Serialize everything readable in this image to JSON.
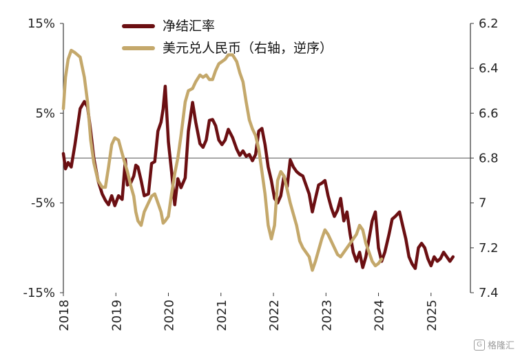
{
  "chart_data": {
    "type": "line",
    "title": "",
    "left_axis": {
      "min": -15,
      "max": 15,
      "ticks": [
        15,
        5,
        -5,
        -15
      ],
      "tick_labels": [
        "15%",
        "5%",
        "-5%",
        "-15%"
      ]
    },
    "right_axis": {
      "min": 6.2,
      "max": 7.4,
      "inverted": true,
      "ticks": [
        6.2,
        6.4,
        6.6,
        6.8,
        7.0,
        7.2,
        7.4
      ],
      "tick_labels": [
        "6.2",
        "6.4",
        "6.6",
        "6.8",
        "7",
        "7.2",
        "7.4"
      ]
    },
    "x_axis": {
      "start": 2018.0,
      "end": 2025.75,
      "ticks": [
        2018,
        2019,
        2020,
        2021,
        2022,
        2023,
        2024,
        2025
      ],
      "tick_labels": [
        "2018",
        "2019",
        "2020",
        "2021",
        "2022",
        "2023",
        "2024",
        "2025"
      ]
    },
    "zero_line": 0,
    "legend_position": "top-center",
    "series": [
      {
        "name": "净结汇率",
        "axis": "left",
        "color": "#6b0f12",
        "points": [
          [
            2018.0,
            0.5
          ],
          [
            2018.04,
            -1.2
          ],
          [
            2018.09,
            -0.5
          ],
          [
            2018.15,
            -1.0
          ],
          [
            2018.22,
            1.5
          ],
          [
            2018.32,
            5.5
          ],
          [
            2018.4,
            6.3
          ],
          [
            2018.46,
            5.7
          ],
          [
            2018.52,
            3.0
          ],
          [
            2018.58,
            0.0
          ],
          [
            2018.66,
            -2.5
          ],
          [
            2018.74,
            -4.0
          ],
          [
            2018.8,
            -4.7
          ],
          [
            2018.86,
            -5.2
          ],
          [
            2018.92,
            -4.2
          ],
          [
            2018.98,
            -5.3
          ],
          [
            2019.05,
            -4.2
          ],
          [
            2019.12,
            -4.6
          ],
          [
            2019.18,
            -0.2
          ],
          [
            2019.22,
            -3.0
          ],
          [
            2019.28,
            -2.8
          ],
          [
            2019.34,
            -2.0
          ],
          [
            2019.38,
            -0.8
          ],
          [
            2019.42,
            -1.0
          ],
          [
            2019.48,
            -2.5
          ],
          [
            2019.54,
            -4.2
          ],
          [
            2019.62,
            -4.0
          ],
          [
            2019.68,
            -0.6
          ],
          [
            2019.74,
            -0.4
          ],
          [
            2019.8,
            3.0
          ],
          [
            2019.86,
            4.0
          ],
          [
            2019.9,
            5.5
          ],
          [
            2019.94,
            8.0
          ],
          [
            2020.0,
            1.8
          ],
          [
            2020.06,
            -1.5
          ],
          [
            2020.12,
            -5.2
          ],
          [
            2020.18,
            -2.3
          ],
          [
            2020.24,
            -3.3
          ],
          [
            2020.32,
            -2.2
          ],
          [
            2020.38,
            3.0
          ],
          [
            2020.46,
            6.2
          ],
          [
            2020.52,
            4.0
          ],
          [
            2020.6,
            1.6
          ],
          [
            2020.66,
            1.2
          ],
          [
            2020.72,
            2.0
          ],
          [
            2020.78,
            4.2
          ],
          [
            2020.84,
            4.3
          ],
          [
            2020.9,
            3.6
          ],
          [
            2020.96,
            2.0
          ],
          [
            2021.02,
            1.5
          ],
          [
            2021.08,
            2.0
          ],
          [
            2021.14,
            3.2
          ],
          [
            2021.22,
            2.3
          ],
          [
            2021.3,
            1.0
          ],
          [
            2021.36,
            0.3
          ],
          [
            2021.42,
            0.8
          ],
          [
            2021.48,
            0.2
          ],
          [
            2021.54,
            0.4
          ],
          [
            2021.6,
            -0.3
          ],
          [
            2021.66,
            0.4
          ],
          [
            2021.72,
            3.0
          ],
          [
            2021.78,
            3.3
          ],
          [
            2021.84,
            1.5
          ],
          [
            2021.9,
            -1.0
          ],
          [
            2021.96,
            -2.5
          ],
          [
            2022.02,
            -4.5
          ],
          [
            2022.08,
            -5.0
          ],
          [
            2022.14,
            -4.2
          ],
          [
            2022.2,
            -2.0
          ],
          [
            2022.26,
            -3.2
          ],
          [
            2022.32,
            -0.2
          ],
          [
            2022.38,
            -1.0
          ],
          [
            2022.44,
            -1.5
          ],
          [
            2022.5,
            -1.8
          ],
          [
            2022.56,
            -2.0
          ],
          [
            2022.62,
            -3.0
          ],
          [
            2022.68,
            -4.0
          ],
          [
            2022.74,
            -6.0
          ],
          [
            2022.8,
            -4.5
          ],
          [
            2022.86,
            -3.0
          ],
          [
            2022.92,
            -2.8
          ],
          [
            2022.98,
            -2.5
          ],
          [
            2023.04,
            -4.2
          ],
          [
            2023.1,
            -5.5
          ],
          [
            2023.16,
            -6.5
          ],
          [
            2023.22,
            -5.8
          ],
          [
            2023.28,
            -4.5
          ],
          [
            2023.34,
            -7.0
          ],
          [
            2023.4,
            -6.0
          ],
          [
            2023.46,
            -8.5
          ],
          [
            2023.52,
            -10.5
          ],
          [
            2023.58,
            -11.5
          ],
          [
            2023.64,
            -10.5
          ],
          [
            2023.7,
            -12.2
          ],
          [
            2023.76,
            -11.0
          ],
          [
            2023.82,
            -9.0
          ],
          [
            2023.88,
            -7.0
          ],
          [
            2023.94,
            -6.0
          ],
          [
            2024.0,
            -10.0
          ],
          [
            2024.06,
            -11.5
          ],
          [
            2024.12,
            -10.5
          ],
          [
            2024.2,
            -8.5
          ],
          [
            2024.26,
            -6.8
          ],
          [
            2024.32,
            -6.5
          ],
          [
            2024.4,
            -6.0
          ],
          [
            2024.46,
            -7.5
          ],
          [
            2024.52,
            -9.0
          ],
          [
            2024.58,
            -11.0
          ],
          [
            2024.64,
            -11.8
          ],
          [
            2024.7,
            -12.3
          ],
          [
            2024.76,
            -10.0
          ],
          [
            2024.82,
            -9.5
          ],
          [
            2024.88,
            -10.0
          ],
          [
            2024.94,
            -11.2
          ],
          [
            2025.0,
            -12.0
          ],
          [
            2025.06,
            -11.0
          ],
          [
            2025.12,
            -11.5
          ],
          [
            2025.18,
            -11.2
          ],
          [
            2025.24,
            -10.5
          ],
          [
            2025.3,
            -11.0
          ],
          [
            2025.36,
            -11.5
          ],
          [
            2025.42,
            -11.0
          ]
        ]
      },
      {
        "name": "美元兑人民币（右轴，逆序）",
        "axis": "right",
        "color": "#c4a86b",
        "points": [
          [
            2018.0,
            6.58
          ],
          [
            2018.04,
            6.44
          ],
          [
            2018.09,
            6.36
          ],
          [
            2018.15,
            6.32
          ],
          [
            2018.22,
            6.33
          ],
          [
            2018.32,
            6.35
          ],
          [
            2018.4,
            6.44
          ],
          [
            2018.46,
            6.55
          ],
          [
            2018.52,
            6.72
          ],
          [
            2018.58,
            6.82
          ],
          [
            2018.66,
            6.9
          ],
          [
            2018.74,
            6.93
          ],
          [
            2018.8,
            6.93
          ],
          [
            2018.86,
            6.84
          ],
          [
            2018.92,
            6.74
          ],
          [
            2018.98,
            6.71
          ],
          [
            2019.05,
            6.72
          ],
          [
            2019.12,
            6.78
          ],
          [
            2019.18,
            6.83
          ],
          [
            2019.22,
            6.86
          ],
          [
            2019.28,
            6.92
          ],
          [
            2019.34,
            6.97
          ],
          [
            2019.38,
            7.04
          ],
          [
            2019.42,
            7.08
          ],
          [
            2019.48,
            7.1
          ],
          [
            2019.54,
            7.04
          ],
          [
            2019.62,
            7.0
          ],
          [
            2019.68,
            6.97
          ],
          [
            2019.74,
            6.96
          ],
          [
            2019.8,
            7.0
          ],
          [
            2019.86,
            7.04
          ],
          [
            2019.9,
            7.09
          ],
          [
            2019.94,
            7.08
          ],
          [
            2020.0,
            7.06
          ],
          [
            2020.06,
            6.96
          ],
          [
            2020.12,
            6.87
          ],
          [
            2020.18,
            6.8
          ],
          [
            2020.24,
            6.7
          ],
          [
            2020.32,
            6.55
          ],
          [
            2020.38,
            6.5
          ],
          [
            2020.46,
            6.49
          ],
          [
            2020.52,
            6.46
          ],
          [
            2020.6,
            6.43
          ],
          [
            2020.66,
            6.44
          ],
          [
            2020.72,
            6.43
          ],
          [
            2020.78,
            6.45
          ],
          [
            2020.84,
            6.45
          ],
          [
            2020.9,
            6.41
          ],
          [
            2020.96,
            6.38
          ],
          [
            2021.02,
            6.37
          ],
          [
            2021.08,
            6.36
          ],
          [
            2021.14,
            6.34
          ],
          [
            2021.22,
            6.34
          ],
          [
            2021.3,
            6.37
          ],
          [
            2021.36,
            6.42
          ],
          [
            2021.42,
            6.46
          ],
          [
            2021.48,
            6.55
          ],
          [
            2021.54,
            6.63
          ],
          [
            2021.6,
            6.67
          ],
          [
            2021.66,
            6.7
          ],
          [
            2021.72,
            6.76
          ],
          [
            2021.78,
            6.86
          ],
          [
            2021.84,
            6.96
          ],
          [
            2021.9,
            7.1
          ],
          [
            2021.96,
            7.16
          ],
          [
            2022.02,
            7.1
          ],
          [
            2022.08,
            6.9
          ],
          [
            2022.14,
            6.86
          ],
          [
            2022.2,
            6.88
          ],
          [
            2022.26,
            6.94
          ],
          [
            2022.32,
            7.0
          ],
          [
            2022.38,
            7.05
          ],
          [
            2022.44,
            7.1
          ],
          [
            2022.5,
            7.17
          ],
          [
            2022.56,
            7.2
          ],
          [
            2022.62,
            7.22
          ],
          [
            2022.68,
            7.24
          ],
          [
            2022.74,
            7.3
          ],
          [
            2022.8,
            7.26
          ],
          [
            2022.86,
            7.21
          ],
          [
            2022.92,
            7.16
          ],
          [
            2022.98,
            7.12
          ],
          [
            2023.04,
            7.14
          ],
          [
            2023.1,
            7.17
          ],
          [
            2023.16,
            7.2
          ],
          [
            2023.22,
            7.23
          ],
          [
            2023.28,
            7.24
          ],
          [
            2023.34,
            7.22
          ],
          [
            2023.4,
            7.2
          ],
          [
            2023.46,
            7.18
          ],
          [
            2023.52,
            7.16
          ],
          [
            2023.58,
            7.14
          ],
          [
            2023.64,
            7.1
          ],
          [
            2023.7,
            7.12
          ],
          [
            2023.76,
            7.18
          ],
          [
            2023.82,
            7.22
          ],
          [
            2023.88,
            7.26
          ],
          [
            2023.94,
            7.28
          ],
          [
            2024.0,
            7.27
          ],
          [
            2024.06,
            7.25
          ]
        ]
      }
    ]
  },
  "watermark": "格隆汇",
  "watermark_icon": "G"
}
